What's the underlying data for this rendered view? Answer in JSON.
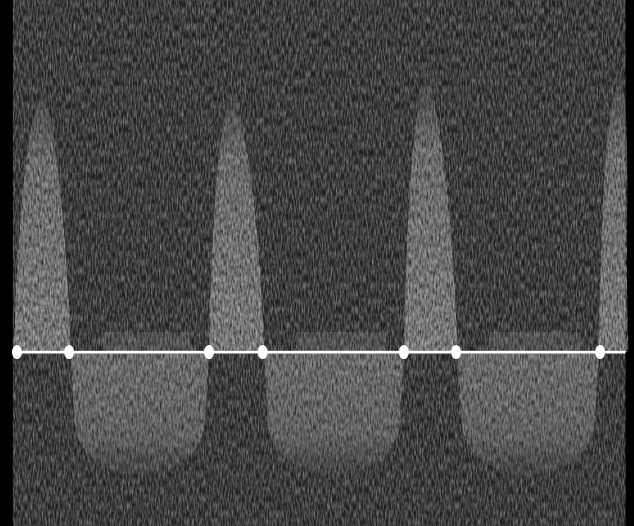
{
  "image": {
    "kind": "spectral-doppler-waveform",
    "colors": {
      "background": "#000000",
      "speckle_dark": "#1a1a1a",
      "speckle_mid": "#3a3a3a",
      "signal_bright": "#d8d8d8",
      "signal_mid": "#a8a8a8",
      "baseline": "#ffffff"
    },
    "cycles_above_baseline": 4,
    "cycles_below_baseline": 3
  }
}
